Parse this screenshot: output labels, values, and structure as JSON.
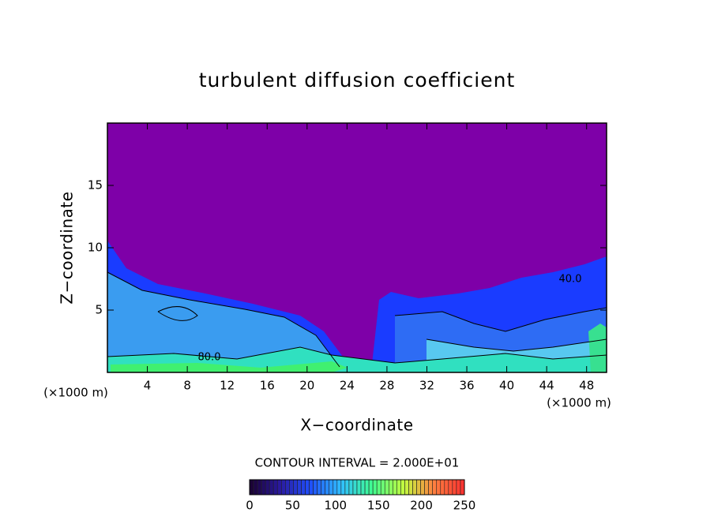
{
  "chart_data": {
    "type": "contour",
    "title": "turbulent diffusion coefficient",
    "xlabel": "X−coordinate",
    "ylabel": "Z−coordinate",
    "x_unit": "(×1000 m)",
    "xlim": [
      0,
      50
    ],
    "xticks": [
      4,
      8,
      12,
      16,
      20,
      24,
      28,
      32,
      36,
      40,
      44,
      48
    ],
    "ylim": [
      0,
      20
    ],
    "yticks": [
      5,
      10,
      15
    ],
    "contour_labels": [
      "80.0",
      "40.0"
    ],
    "contour_interval_text": "CONTOUR INTERVAL = 2.000E+01",
    "colorbar": {
      "lim": [
        0,
        250
      ],
      "ticks": [
        0,
        50,
        100,
        150,
        200,
        250
      ],
      "colors": [
        "#1a0030",
        "#2a1aa0",
        "#2050ff",
        "#30c0ff",
        "#40ff90",
        "#c0ff40",
        "#ff8040",
        "#ff3030"
      ]
    }
  }
}
